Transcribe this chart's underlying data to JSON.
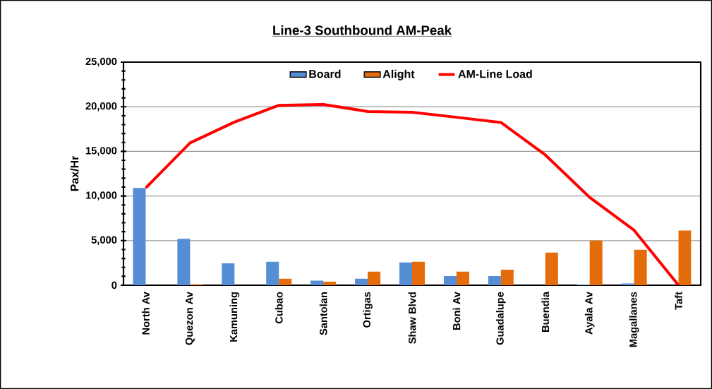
{
  "chart_data": {
    "type": "bar",
    "title": "Line-3 Southbound AM-Peak",
    "ylabel": "Pax/Hr",
    "categories": [
      "North Av",
      "Quezon Av",
      "Kamuning",
      "Cubao",
      "Santolan",
      "Ortigas",
      "Shaw Blvd",
      "Boni Av",
      "Guadalupe",
      "Buendia",
      "Ayala Av",
      "Magallanes",
      "Taft"
    ],
    "series": [
      {
        "name": "Board",
        "color": "#558ed5",
        "values": [
          10900,
          5200,
          2450,
          2630,
          510,
          730,
          2550,
          1020,
          1020,
          0,
          80,
          190,
          0
        ]
      },
      {
        "name": "Alight",
        "color": "#e46c0a",
        "values": [
          0,
          100,
          0,
          730,
          400,
          1530,
          2630,
          1530,
          1750,
          3660,
          5000,
          3980,
          6130
        ]
      },
      {
        "name": "AM-Line Load",
        "type": "line",
        "color": "#ff0000",
        "values": [
          10900,
          15950,
          18290,
          20160,
          20260,
          19470,
          19390,
          18820,
          18240,
          14600,
          9840,
          6160,
          0
        ]
      }
    ],
    "ylim": [
      0,
      25000
    ],
    "yticks": [
      {
        "value": 0,
        "label": "0"
      },
      {
        "value": 5000,
        "label": "5,000"
      },
      {
        "value": 10000,
        "label": "10,000"
      },
      {
        "value": 15000,
        "label": "15,000"
      },
      {
        "value": 20000,
        "label": "20,000"
      },
      {
        "value": 25000,
        "label": "25,000"
      }
    ],
    "grid": "y",
    "legend": "top",
    "marker": "none",
    "line_style": "solid"
  }
}
